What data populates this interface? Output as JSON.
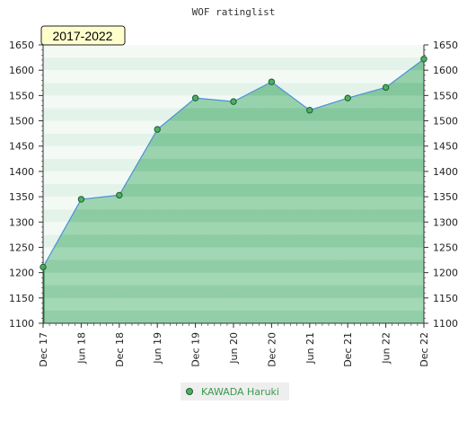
{
  "chart_data": {
    "type": "area",
    "title": "WOF ratinglist",
    "annotation": "2017-2022",
    "categories": [
      "Dec 17",
      "Jun 18",
      "Dec 18",
      "Jun 19",
      "Dec 19",
      "Jun 20",
      "Dec 20",
      "Jun 21",
      "Dec 21",
      "Jun 22",
      "Dec 22"
    ],
    "series": [
      {
        "name": "KAWADA Haruki",
        "values": [
          1211,
          1345,
          1353,
          1483,
          1545,
          1538,
          1577,
          1521,
          1545,
          1566,
          1622
        ]
      }
    ],
    "ylim": [
      1100,
      1650
    ],
    "yticks": [
      1100,
      1150,
      1200,
      1250,
      1300,
      1350,
      1400,
      1450,
      1500,
      1550,
      1600,
      1650
    ],
    "xlabel": "",
    "ylabel": "",
    "legend": "bottom-center",
    "colors": {
      "line": "#4a90d9",
      "marker": "#4caf64",
      "marker_edge": "#1f5e2e",
      "fill_dark": "#7cc596",
      "fill_light": "#e8f5ec",
      "annotation_bg": "#ffffcc"
    }
  }
}
